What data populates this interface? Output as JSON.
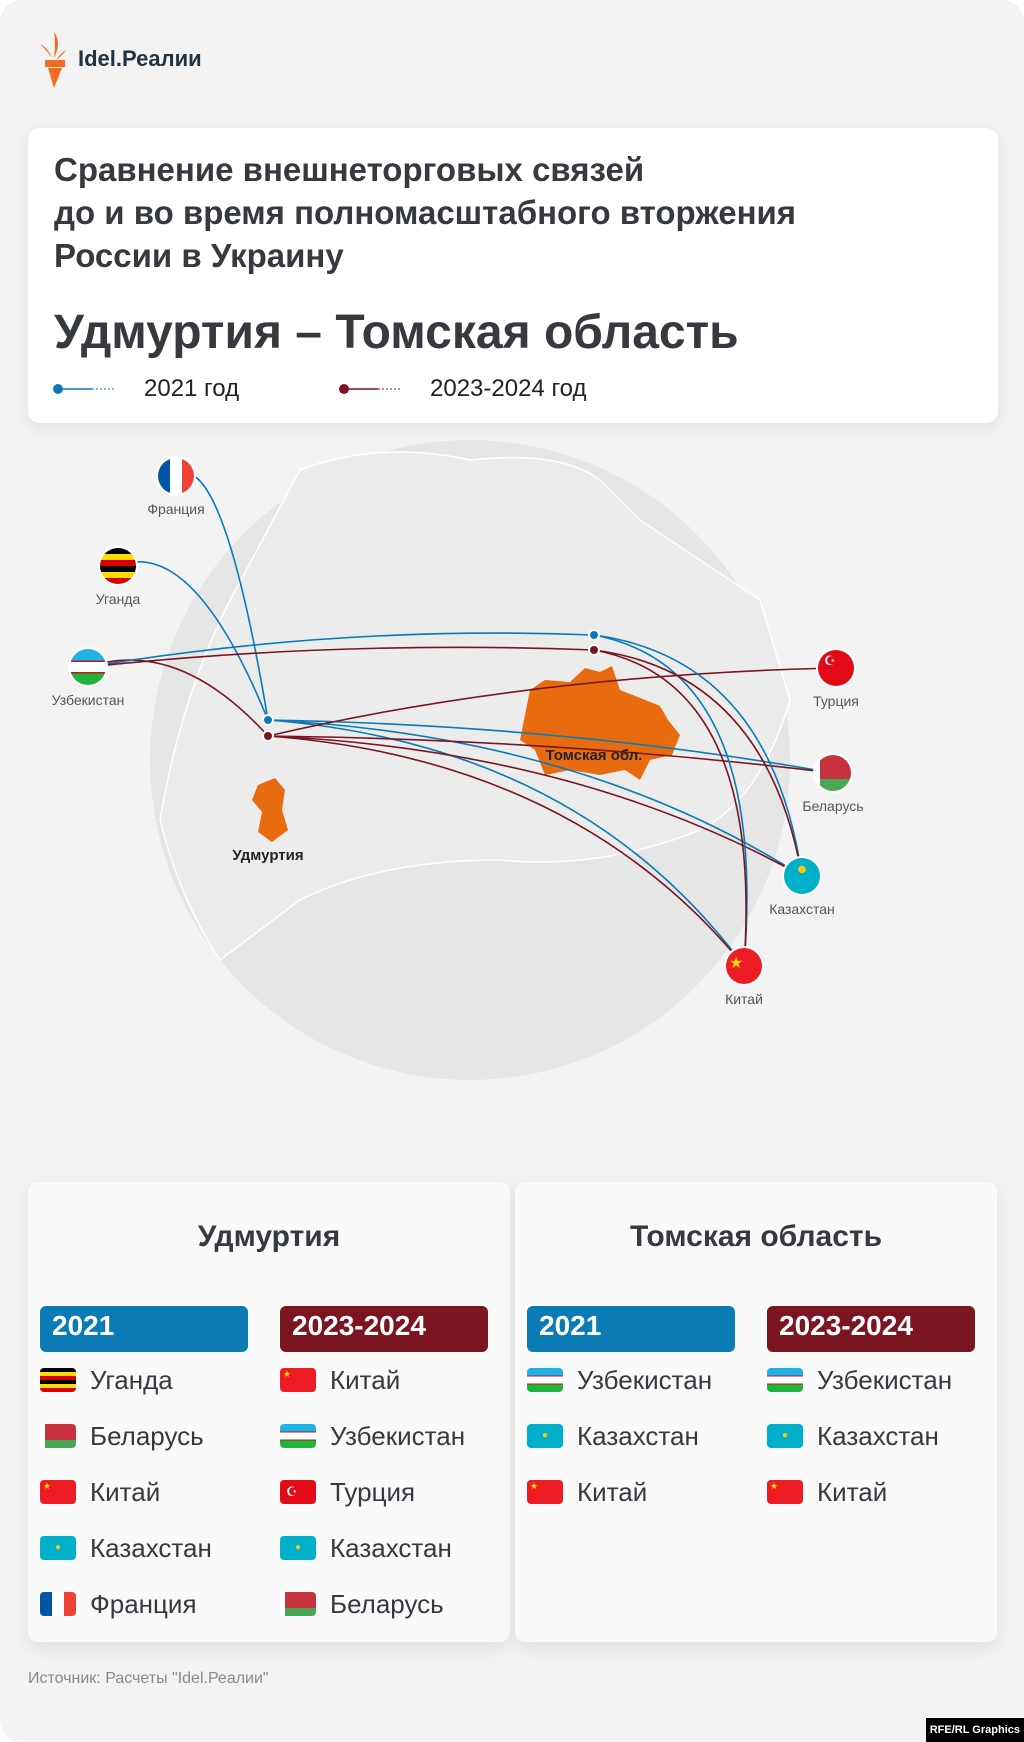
{
  "brand": {
    "name": "Idel.Реалии"
  },
  "title": {
    "line1": "Сравнение внешнеторговых связей",
    "line2": "до и во время полномасштабного вторжения",
    "line3": "России в Украину",
    "subtitle": "Удмуртия – Томская область"
  },
  "legend": [
    {
      "label": "2021 год",
      "color": "#0a7bb5"
    },
    {
      "label": "2023-2024 год",
      "color": "#7b1520"
    }
  ],
  "map": {
    "regions": [
      {
        "label": "Удмуртия",
        "color": "#e86b10"
      },
      {
        "label": "Томская обл.",
        "color": "#e86b10"
      }
    ],
    "countries": [
      "Франция",
      "Уганда",
      "Узбекистан",
      "Турция",
      "Беларусь",
      "Казахстан",
      "Китай"
    ],
    "connections": {
      "udmurtia_2021": [
        "Уганда",
        "Беларусь",
        "Китай",
        "Казахстан",
        "Франция"
      ],
      "udmurtia_2023": [
        "Китай",
        "Узбекистан",
        "Турция",
        "Казахстан",
        "Беларусь"
      ],
      "tomsk_2021": [
        "Узбекистан",
        "Казахстан",
        "Китай"
      ],
      "tomsk_2023": [
        "Узбекистан",
        "Казахстан",
        "Китай"
      ]
    }
  },
  "panels": [
    {
      "title": "Удмуртия",
      "col2021": {
        "label": "2021",
        "items": [
          "Уганда",
          "Беларусь",
          "Китай",
          "Казахстан",
          "Франция"
        ]
      },
      "col2023": {
        "label": "2023-2024",
        "items": [
          "Китай",
          "Узбекистан",
          "Турция",
          "Казахстан",
          "Беларусь"
        ]
      }
    },
    {
      "title": "Томская область",
      "col2021": {
        "label": "2021",
        "items": [
          "Узбекистан",
          "Казахстан",
          "Китай"
        ]
      },
      "col2023": {
        "label": "2023-2024",
        "items": [
          "Узбекистан",
          "Казахстан",
          "Китай"
        ]
      }
    }
  ],
  "source": "Источник: Расчеты \"Idel.Реалии\"",
  "credit": "RFE/RL Graphics"
}
